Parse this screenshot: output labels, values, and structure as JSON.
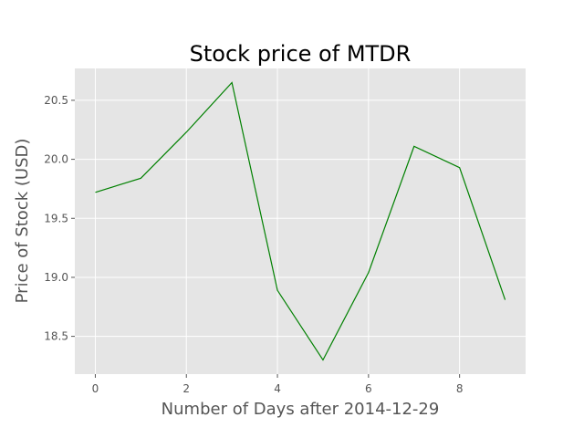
{
  "chart_data": {
    "type": "line",
    "title": "Stock price of MTDR",
    "xlabel": "Number of Days after 2014-12-29",
    "ylabel": "Price of Stock (USD)",
    "x": [
      0,
      1,
      2,
      3,
      4,
      5,
      6,
      7,
      8,
      9
    ],
    "series": [
      {
        "values": [
          19.72,
          19.84,
          20.23,
          20.65,
          18.89,
          18.3,
          19.04,
          20.11,
          19.93,
          18.81
        ]
      }
    ],
    "xlim": [
      -0.45,
      9.45
    ],
    "ylim": [
      18.18,
      20.77
    ],
    "xticks": [
      0,
      2,
      4,
      6,
      8
    ],
    "xtick_labels": [
      "0",
      "2",
      "4",
      "6",
      "8"
    ],
    "yticks": [
      18.5,
      19.0,
      19.5,
      20.0,
      20.5
    ],
    "ytick_labels": [
      "18.5",
      "19.0",
      "19.5",
      "20.0",
      "20.5"
    ],
    "grid": true,
    "legend": "none",
    "colors": {
      "line": "#008000",
      "plot_background": "#e5e5e5",
      "grid": "#ffffff",
      "text": "#555555"
    }
  }
}
